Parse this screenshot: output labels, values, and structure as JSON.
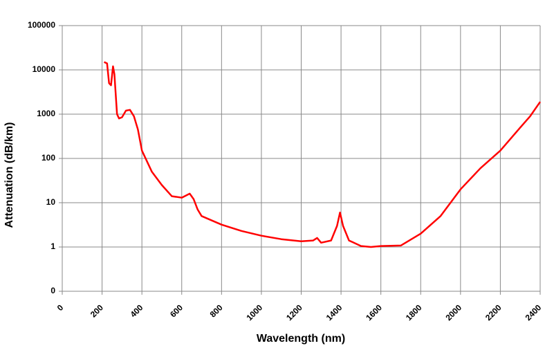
{
  "chart_data": {
    "type": "line",
    "xlabel": "Wavelength (nm)",
    "ylabel": "Attenuation (dB/km)",
    "yscale": "log",
    "grid": true,
    "xlim": [
      0,
      2400
    ],
    "xticks": [
      0,
      200,
      400,
      600,
      800,
      1000,
      1200,
      1400,
      1600,
      1800,
      2000,
      2200,
      2400
    ],
    "ylim": [
      0.1,
      100000
    ],
    "yticks": [
      {
        "value": 0.1,
        "label": "0"
      },
      1,
      10,
      100,
      1000,
      10000,
      100000
    ],
    "series": [
      {
        "color": "#ff0000",
        "x": [
          210,
          225,
          235,
          245,
          255,
          262,
          275,
          285,
          300,
          320,
          340,
          360,
          380,
          400,
          450,
          500,
          550,
          600,
          640,
          660,
          680,
          700,
          800,
          900,
          1000,
          1100,
          1200,
          1260,
          1280,
          1300,
          1350,
          1380,
          1395,
          1410,
          1440,
          1500,
          1550,
          1600,
          1700,
          1800,
          1900,
          2000,
          2100,
          2200,
          2300,
          2350,
          2400
        ],
        "values": [
          15000,
          14000,
          5000,
          4500,
          12000,
          8000,
          1000,
          800,
          850,
          1200,
          1250,
          900,
          450,
          150,
          50,
          25,
          14,
          13,
          16,
          12,
          7,
          5,
          3.2,
          2.3,
          1.8,
          1.5,
          1.35,
          1.4,
          1.6,
          1.25,
          1.4,
          3,
          6,
          3,
          1.4,
          1.05,
          1,
          1.05,
          1.08,
          2,
          5,
          20,
          60,
          150,
          500,
          900,
          1900
        ]
      }
    ]
  }
}
